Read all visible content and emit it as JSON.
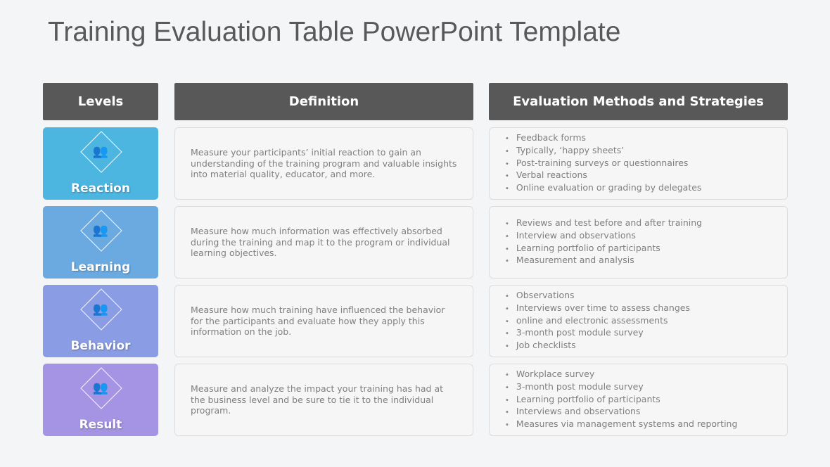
{
  "title": "Training Evaluation Table PowerPoint Template",
  "headers": {
    "levels": "Levels",
    "definition": "Definition",
    "methods": "Evaluation Methods and Strategies"
  },
  "rows": [
    {
      "level": "Reaction",
      "color": "#4db6e0",
      "icon": "people-search-icon",
      "definition": "Measure your participants’ initial reaction to gain an understanding of the training program and valuable insights into material quality, educator, and more.",
      "methods": [
        "Feedback forms",
        "Typically, ‘happy sheets’",
        "Post-training surveys or questionnaires",
        "Verbal reactions",
        "Online evaluation or grading by delegates"
      ]
    },
    {
      "level": "Learning",
      "color": "#6aaae0",
      "icon": "people-search-icon",
      "definition": "Measure how much information was effectively absorbed during the training and map it to the program or individual learning objectives.",
      "methods": [
        "Reviews and test before and after training",
        "Interview and observations",
        "Learning portfolio of participants",
        "Measurement and analysis"
      ]
    },
    {
      "level": "Behavior",
      "color": "#8a9de4",
      "icon": "people-search-icon",
      "definition": "Measure how much training have influenced the behavior for the participants and evaluate how they apply this information on the job.",
      "methods": [
        "Observations",
        "Interviews over time to assess changes",
        "online and electronic assessments",
        "3-month post module survey",
        "Job checklists"
      ]
    },
    {
      "level": "Result",
      "color": "#a594e4",
      "icon": "people-search-icon",
      "definition": "Measure and analyze the impact your training has had at the business level and be sure to tie it to the individual program.",
      "methods": [
        "Workplace survey",
        "3-month post module survey",
        "Learning portfolio of participants",
        "Interviews and observations",
        "Measures via management systems and reporting"
      ]
    }
  ]
}
